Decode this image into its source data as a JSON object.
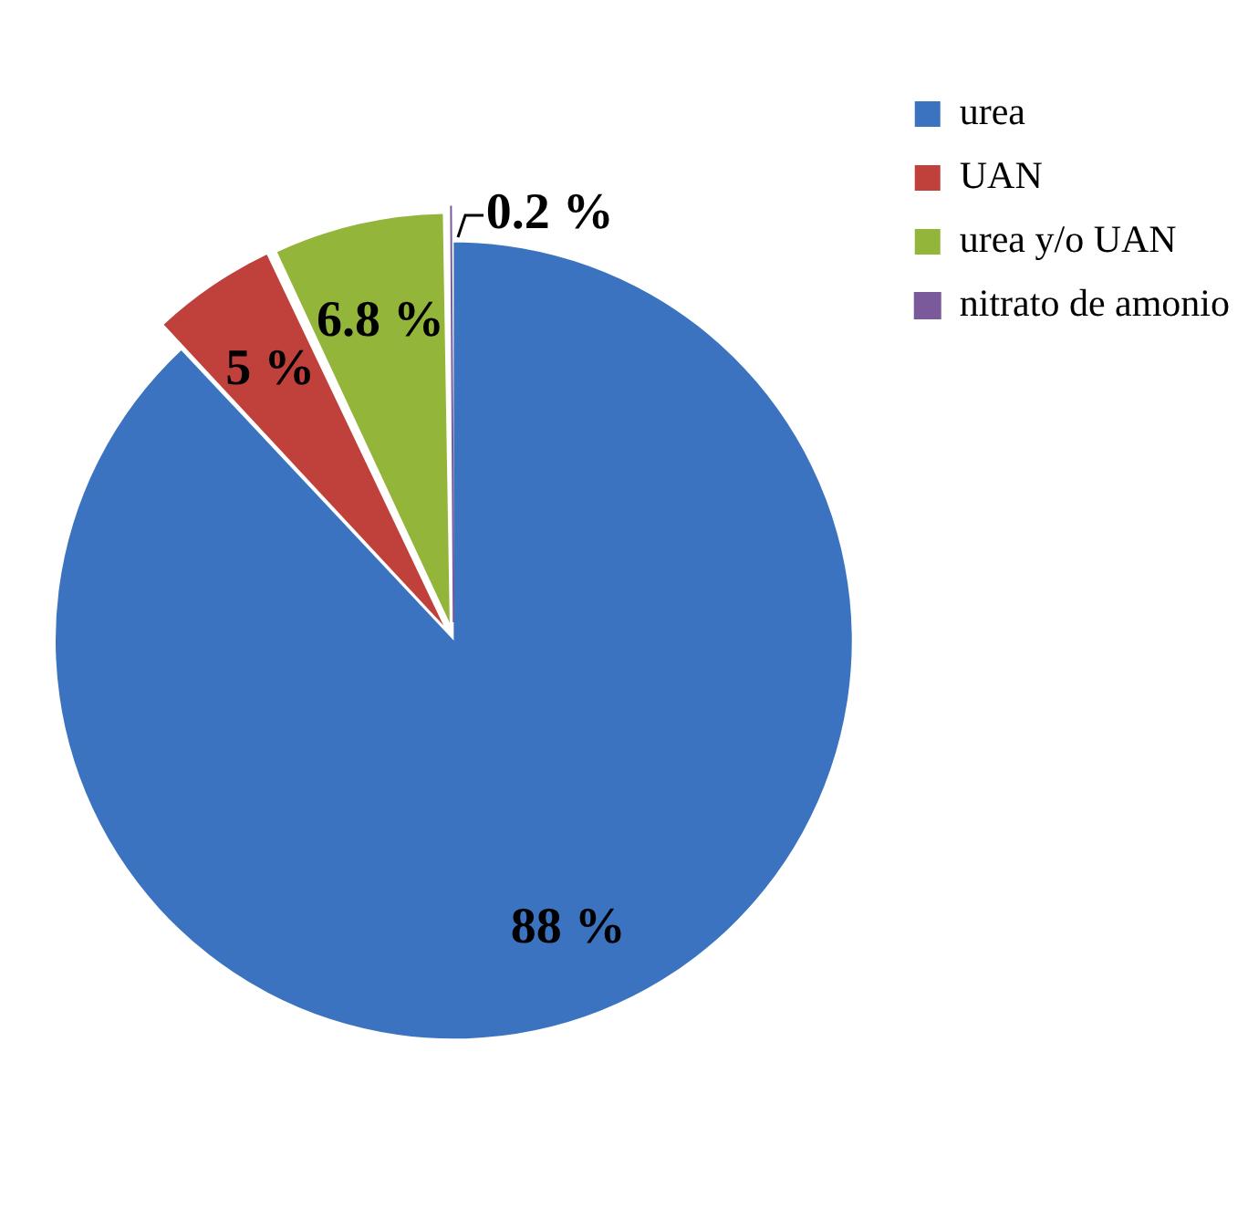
{
  "chart_data": {
    "type": "pie",
    "categories": [
      "urea",
      "UAN",
      "urea y/o UAN",
      "nitrato de amonio"
    ],
    "values": [
      88,
      5,
      6.8,
      0.2
    ],
    "colors": [
      "#3b73c0",
      "#c0403c",
      "#93b53a",
      "#7a5a9a"
    ],
    "value_labels": [
      "88 %",
      "5 %",
      "6.8 %",
      "0.2 %"
    ],
    "legend": "top right"
  }
}
